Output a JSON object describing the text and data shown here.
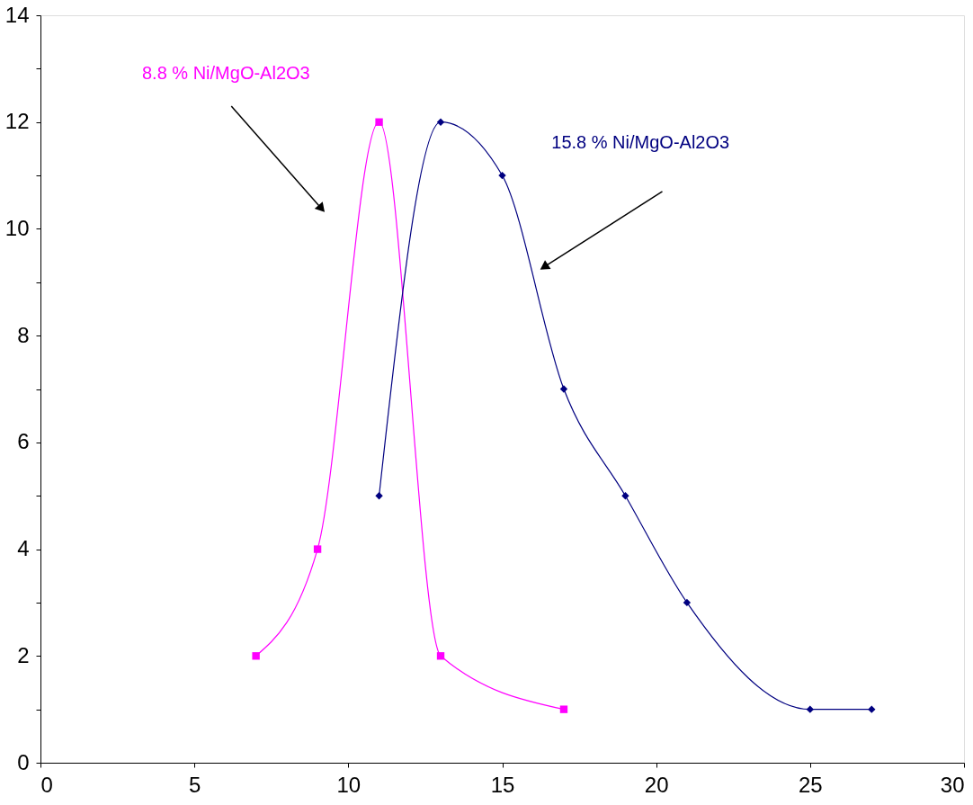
{
  "chart_data": {
    "type": "line",
    "line_style": "solid",
    "xlim": [
      0,
      30
    ],
    "xticks": [
      0,
      5,
      10,
      15,
      20,
      25,
      30
    ],
    "ylim": [
      0,
      14
    ],
    "yticks": [
      0,
      {
        "value": 1,
        "label": null
      },
      2,
      {
        "value": 3,
        "label": null
      },
      4,
      {
        "value": 5,
        "label": null
      },
      6,
      {
        "value": 7,
        "label": null
      },
      8,
      {
        "value": 9,
        "label": null
      },
      10,
      {
        "value": 11,
        "label": null
      },
      12,
      {
        "value": 13,
        "label": null
      },
      14
    ],
    "series": [
      {
        "name": "8.8 % Ni/MgO-Al2O3",
        "color": "#ff00ff",
        "marker": "square",
        "x": [
          7,
          9,
          11,
          13,
          17
        ],
        "values": [
          2,
          4,
          12,
          2,
          1
        ]
      },
      {
        "name": "15.8 % Ni/MgO-Al2O3",
        "color": "#000080",
        "marker": "diamond",
        "x": [
          11,
          13,
          15,
          17,
          19,
          21,
          25,
          27
        ],
        "values": [
          5,
          12,
          11,
          7,
          5,
          3,
          1,
          1
        ]
      }
    ]
  }
}
